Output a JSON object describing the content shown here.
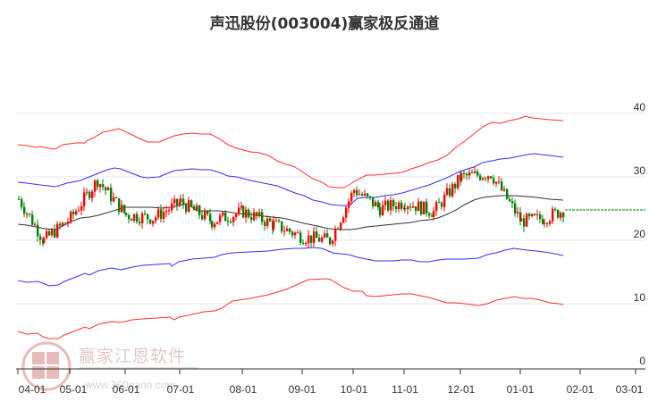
{
  "title": "声迅股份(003004)赢家极反通道",
  "watermark": {
    "brand": "赢家江恩软件",
    "url": "www.360gann.com",
    "seal": [
      "江",
      "赢",
      "恩",
      "家"
    ]
  },
  "colors": {
    "outer_band": "#ff3333",
    "inner_band": "#3333ff",
    "mid_line": "#333333",
    "candle_up": "#ff0000",
    "candle_down": "#008000",
    "projection": "#008000",
    "grid": "#e6e6e6"
  },
  "chart_data": {
    "type": "candlestick",
    "title": "声迅股份(003004)赢家极反通道",
    "xlabel": "",
    "ylabel": "",
    "ylim": [
      0,
      40
    ],
    "y_ticks": [
      0,
      10,
      20,
      30,
      40
    ],
    "x_ticks": [
      "04-01",
      "05-01",
      "06-01",
      "07-01",
      "08-01",
      "09-01",
      "10-01",
      "11-01",
      "12-01",
      "01-01",
      "02-01",
      "03-01"
    ],
    "grid": "horizontal",
    "legend": "none",
    "series": [
      {
        "name": "outer-upper",
        "color": "red",
        "x": [
          "04-01",
          "05-01",
          "06-01",
          "07-01",
          "08-01",
          "09-01",
          "10-01",
          "11-01",
          "12-01",
          "01-01",
          "02-01"
        ],
        "values": [
          35.0,
          34.5,
          37.5,
          37.0,
          35.5,
          31.0,
          28.0,
          30.5,
          36.5,
          39.5,
          39.0
        ]
      },
      {
        "name": "inner-upper",
        "color": "blue",
        "x": [
          "04-01",
          "05-01",
          "06-01",
          "07-01",
          "08-01",
          "09-01",
          "10-01",
          "11-01",
          "12-01",
          "01-01",
          "02-01"
        ],
        "values": [
          29.0,
          28.0,
          31.0,
          30.5,
          29.0,
          25.5,
          24.5,
          25.5,
          30.0,
          33.5,
          33.0
        ]
      },
      {
        "name": "middle",
        "color": "black",
        "x": [
          "04-01",
          "05-01",
          "06-01",
          "07-01",
          "08-01",
          "09-01",
          "10-01",
          "11-01",
          "12-01",
          "01-01",
          "02-01"
        ],
        "values": [
          22.5,
          21.5,
          24.5,
          25.0,
          24.0,
          22.5,
          22.0,
          23.0,
          25.0,
          27.0,
          26.5
        ]
      },
      {
        "name": "inner-lower",
        "color": "blue",
        "x": [
          "04-01",
          "05-01",
          "06-01",
          "07-01",
          "08-01",
          "09-01",
          "10-01",
          "11-01",
          "12-01",
          "01-01",
          "02-01"
        ],
        "values": [
          13.5,
          13.0,
          15.0,
          16.0,
          16.8,
          17.3,
          17.8,
          16.5,
          17.0,
          18.5,
          17.5
        ]
      },
      {
        "name": "outer-lower",
        "color": "red",
        "x": [
          "04-01",
          "05-01",
          "06-01",
          "07-01",
          "08-01",
          "09-01",
          "10-01",
          "11-01",
          "12-01",
          "01-01",
          "02-01"
        ],
        "values": [
          5.5,
          5.0,
          7.0,
          8.5,
          10.5,
          12.5,
          13.5,
          11.5,
          10.0,
          10.5,
          9.5
        ]
      },
      {
        "name": "close",
        "color": "candles",
        "x": [
          "04-01",
          "04-15",
          "05-01",
          "05-15",
          "06-01",
          "06-15",
          "07-01",
          "07-15",
          "08-01",
          "08-15",
          "09-01",
          "09-15",
          "10-01",
          "10-15",
          "11-01",
          "11-15",
          "12-01",
          "12-15",
          "01-01",
          "01-15",
          "01-25"
        ],
        "values": [
          26.5,
          20.0,
          23.5,
          29.5,
          24.0,
          23.5,
          26.0,
          23.0,
          24.5,
          22.5,
          20.5,
          20.0,
          28.0,
          25.0,
          26.0,
          24.5,
          30.0,
          30.5,
          23.0,
          23.5,
          24.8
        ]
      },
      {
        "name": "projection",
        "color": "green",
        "style": "dashed",
        "x": [
          "01-25",
          "03-01"
        ],
        "values": [
          24.8,
          24.8
        ]
      }
    ]
  }
}
